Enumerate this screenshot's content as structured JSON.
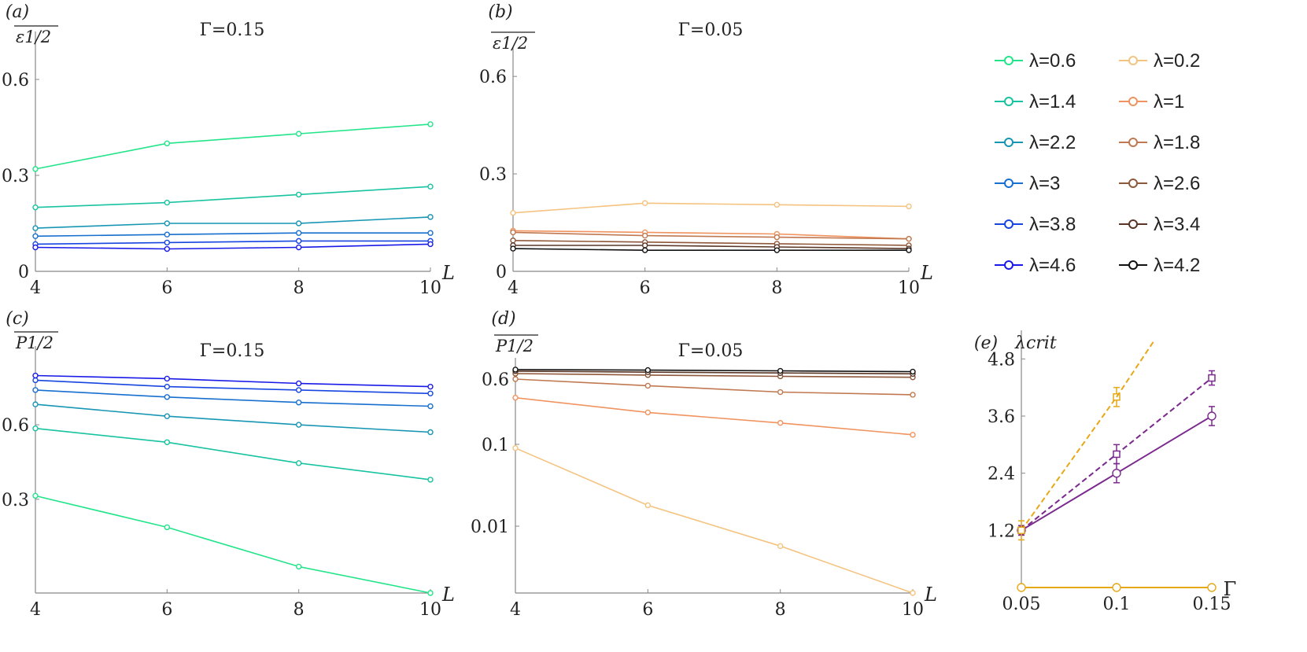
{
  "figure": {
    "legend": [
      {
        "label": "λ=0.6",
        "color": "#22e58a"
      },
      {
        "label": "λ=1.4",
        "color": "#17c3a0"
      },
      {
        "label": "λ=2.2",
        "color": "#1796b4"
      },
      {
        "label": "λ=3",
        "color": "#176fcf"
      },
      {
        "label": "λ=3.8",
        "color": "#1745e0"
      },
      {
        "label": "λ=4.6",
        "color": "#1a1ae8"
      },
      {
        "label": "λ=0.2",
        "color": "#f5c380"
      },
      {
        "label": "λ=1",
        "color": "#f0935f"
      },
      {
        "label": "λ=1.8",
        "color": "#c07850"
      },
      {
        "label": "λ=2.6",
        "color": "#90583a"
      },
      {
        "label": "λ=3.4",
        "color": "#5a3626"
      },
      {
        "label": "λ=4.2",
        "color": "#111111"
      }
    ]
  },
  "chart_data": [
    {
      "panel": "(a)",
      "type": "line",
      "title": "Γ=0.15",
      "xlabel": "L",
      "ylabel": "ε1/2",
      "x": [
        4,
        6,
        8,
        10
      ],
      "xlim": [
        4,
        10
      ],
      "xticks": [
        "4",
        "6",
        "8",
        "10"
      ],
      "ylim": [
        0,
        0.75
      ],
      "yticks": [
        {
          "value": 0,
          "label": "0"
        },
        {
          "value": 0.3,
          "label": "0.3"
        },
        {
          "value": 0.6,
          "label": "0.6"
        }
      ],
      "scale": "linear",
      "series": [
        {
          "name": "λ=0.6",
          "color": "#22e58a",
          "values": [
            0.32,
            0.4,
            0.43,
            0.46
          ]
        },
        {
          "name": "λ=1.4",
          "color": "#17c3a0",
          "values": [
            0.2,
            0.215,
            0.24,
            0.265
          ]
        },
        {
          "name": "λ=2.2",
          "color": "#1796b4",
          "values": [
            0.135,
            0.15,
            0.15,
            0.17
          ]
        },
        {
          "name": "λ=3",
          "color": "#176fcf",
          "values": [
            0.11,
            0.115,
            0.12,
            0.12
          ]
        },
        {
          "name": "λ=3.8",
          "color": "#1745e0",
          "values": [
            0.085,
            0.09,
            0.095,
            0.095
          ]
        },
        {
          "name": "λ=4.6",
          "color": "#1a1ae8",
          "values": [
            0.075,
            0.07,
            0.075,
            0.085
          ]
        }
      ]
    },
    {
      "panel": "(b)",
      "type": "line",
      "title": "Γ=0.05",
      "xlabel": "L",
      "ylabel": "ε1/2",
      "x": [
        4,
        6,
        8,
        10
      ],
      "xlim": [
        4,
        10
      ],
      "xticks": [
        "4",
        "6",
        "8",
        "10"
      ],
      "ylim": [
        0,
        0.69
      ],
      "yticks": [
        {
          "value": 0,
          "label": "0"
        },
        {
          "value": 0.3,
          "label": "0.3"
        },
        {
          "value": 0.6,
          "label": "0.6"
        }
      ],
      "scale": "linear",
      "series": [
        {
          "name": "λ=0.2",
          "color": "#f5c380",
          "values": [
            0.18,
            0.21,
            0.205,
            0.2
          ]
        },
        {
          "name": "λ=1",
          "color": "#f0935f",
          "values": [
            0.125,
            0.12,
            0.115,
            0.1
          ]
        },
        {
          "name": "λ=1.8",
          "color": "#c07850",
          "values": [
            0.12,
            0.11,
            0.105,
            0.1
          ]
        },
        {
          "name": "λ=2.6",
          "color": "#90583a",
          "values": [
            0.095,
            0.09,
            0.085,
            0.08
          ]
        },
        {
          "name": "λ=3.4",
          "color": "#5a3626",
          "values": [
            0.08,
            0.08,
            0.075,
            0.07
          ]
        },
        {
          "name": "λ=4.2",
          "color": "#111111",
          "values": [
            0.07,
            0.065,
            0.065,
            0.065
          ]
        }
      ]
    },
    {
      "panel": "(c)",
      "type": "line",
      "title": "Γ=0.15",
      "xlabel": "L",
      "ylabel": "P1/2",
      "x": [
        4,
        6,
        8,
        10
      ],
      "xlim": [
        4,
        10
      ],
      "xticks": [
        "4",
        "6",
        "8",
        "10"
      ],
      "ylim": [
        0.065,
        0.96
      ],
      "yticks": [
        {
          "value": 0.3,
          "label": "0.3"
        },
        {
          "value": 0.6,
          "label": "0.6"
        }
      ],
      "scale": "custom",
      "series": [
        {
          "name": "λ=0.6",
          "color": "#22e58a",
          "values": [
            0.31,
            0.19,
            0.1,
            0.065
          ]
        },
        {
          "name": "λ=1.4",
          "color": "#17c3a0",
          "values": [
            0.58,
            0.51,
            0.42,
            0.36
          ]
        },
        {
          "name": "λ=2.2",
          "color": "#1796b4",
          "values": [
            0.7,
            0.64,
            0.6,
            0.56
          ]
        },
        {
          "name": "λ=3",
          "color": "#176fcf",
          "values": [
            0.78,
            0.74,
            0.71,
            0.69
          ]
        },
        {
          "name": "λ=3.8",
          "color": "#1745e0",
          "values": [
            0.84,
            0.8,
            0.78,
            0.76
          ]
        },
        {
          "name": "λ=4.6",
          "color": "#1a1ae8",
          "values": [
            0.87,
            0.85,
            0.82,
            0.8
          ]
        }
      ]
    },
    {
      "panel": "(d)",
      "type": "line",
      "title": "Γ=0.05",
      "xlabel": "L",
      "ylabel": "P1/2",
      "x": [
        4,
        6,
        8,
        10
      ],
      "xlim": [
        4,
        10
      ],
      "xticks": [
        "4",
        "6",
        "8",
        "10"
      ],
      "ylim": [
        0.0018,
        1.0
      ],
      "yticks": [
        {
          "value": 0.01,
          "label": "0.01"
        },
        {
          "value": 0.1,
          "label": "0.1"
        },
        {
          "value": 0.6,
          "label": "0.6"
        }
      ],
      "scale": "custom",
      "series": [
        {
          "name": "λ=0.2",
          "color": "#f5c380",
          "values": [
            0.09,
            0.018,
            0.006,
            0.0018
          ]
        },
        {
          "name": "λ=1",
          "color": "#f0935f",
          "values": [
            0.36,
            0.24,
            0.18,
            0.13
          ]
        },
        {
          "name": "λ=1.8",
          "color": "#c07850",
          "values": [
            0.6,
            0.5,
            0.42,
            0.39
          ]
        },
        {
          "name": "λ=2.6",
          "color": "#90583a",
          "values": [
            0.77,
            0.72,
            0.68,
            0.65
          ]
        },
        {
          "name": "λ=3.4",
          "color": "#5a3626",
          "values": [
            0.86,
            0.82,
            0.79,
            0.76
          ]
        },
        {
          "name": "λ=4.2",
          "color": "#111111",
          "values": [
            0.92,
            0.9,
            0.87,
            0.84
          ]
        }
      ]
    },
    {
      "panel": "(e)",
      "type": "line",
      "title": "",
      "xlabel": "Γ",
      "ylabel": "λcrit",
      "x": [
        0.05,
        0.1,
        0.15
      ],
      "xlim": [
        0.05,
        0.15
      ],
      "xticks": [
        "0.05",
        "0.1",
        "0.15"
      ],
      "ylim": [
        0,
        5.4
      ],
      "yticks": [
        {
          "value": 1.2,
          "label": "1.2"
        },
        {
          "value": 2.4,
          "label": "2.4"
        },
        {
          "value": 3.6,
          "label": "3.6"
        },
        {
          "value": 4.8,
          "label": "4.8"
        }
      ],
      "scale": "linear",
      "series": [
        {
          "name": "purple-solid-circles",
          "color": "#7b2a8e",
          "dash": "",
          "marker": "circle",
          "x": [
            0.05,
            0.1,
            0.15
          ],
          "values": [
            1.2,
            2.4,
            3.6
          ],
          "err": [
            0.1,
            0.2,
            0.2
          ]
        },
        {
          "name": "purple-dashed-squares",
          "color": "#7b2a8e",
          "dash": "7,4",
          "marker": "square",
          "x": [
            0.05,
            0.1,
            0.15
          ],
          "values": [
            1.2,
            2.8,
            4.4
          ],
          "err": [
            0.1,
            0.2,
            0.15
          ]
        },
        {
          "name": "orange-dashed-squares",
          "color": "#e6a817",
          "dash": "7,4",
          "marker": "square",
          "x": [
            0.05,
            0.1
          ],
          "values": [
            1.2,
            4.0
          ],
          "err": [
            0.2,
            0.2
          ]
        },
        {
          "name": "orange-dashed-extension",
          "color": "#e6a817",
          "dash": "7,4",
          "marker": "none",
          "x": [
            0.1,
            0.12
          ],
          "values": [
            4.0,
            5.2
          ],
          "err": []
        },
        {
          "name": "orange-solid-circles",
          "color": "#e6a817",
          "dash": "",
          "marker": "circle",
          "x": [
            0.05,
            0.1,
            0.15
          ],
          "values": [
            0.0,
            0.0,
            0.0
          ],
          "err": [
            0.04,
            0.04,
            0.04
          ]
        }
      ]
    }
  ]
}
